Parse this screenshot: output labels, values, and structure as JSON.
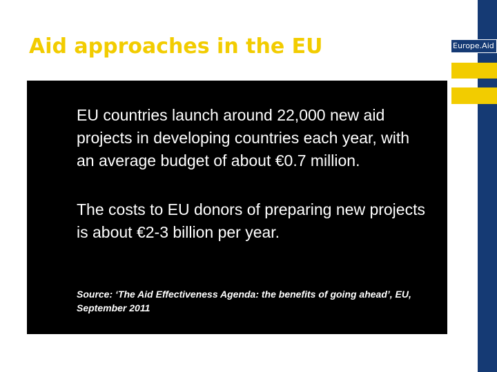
{
  "slide": {
    "title": "Aid approaches in the EU"
  },
  "branding": {
    "label": "Europe.Aid",
    "colors": {
      "navy": "#153a74",
      "yellow": "#f2cc00"
    }
  },
  "content": {
    "paragraphs": [
      "EU countries launch around 22,000 new aid projects in developing countries each year, with an average budget of about €0.7 million.",
      "The costs to EU donors of preparing new projects is about €2-3 billion per year."
    ],
    "source": "Source: ‘The Aid Effectiveness Agenda: the benefits of going ahead’, EU, September 2011"
  }
}
